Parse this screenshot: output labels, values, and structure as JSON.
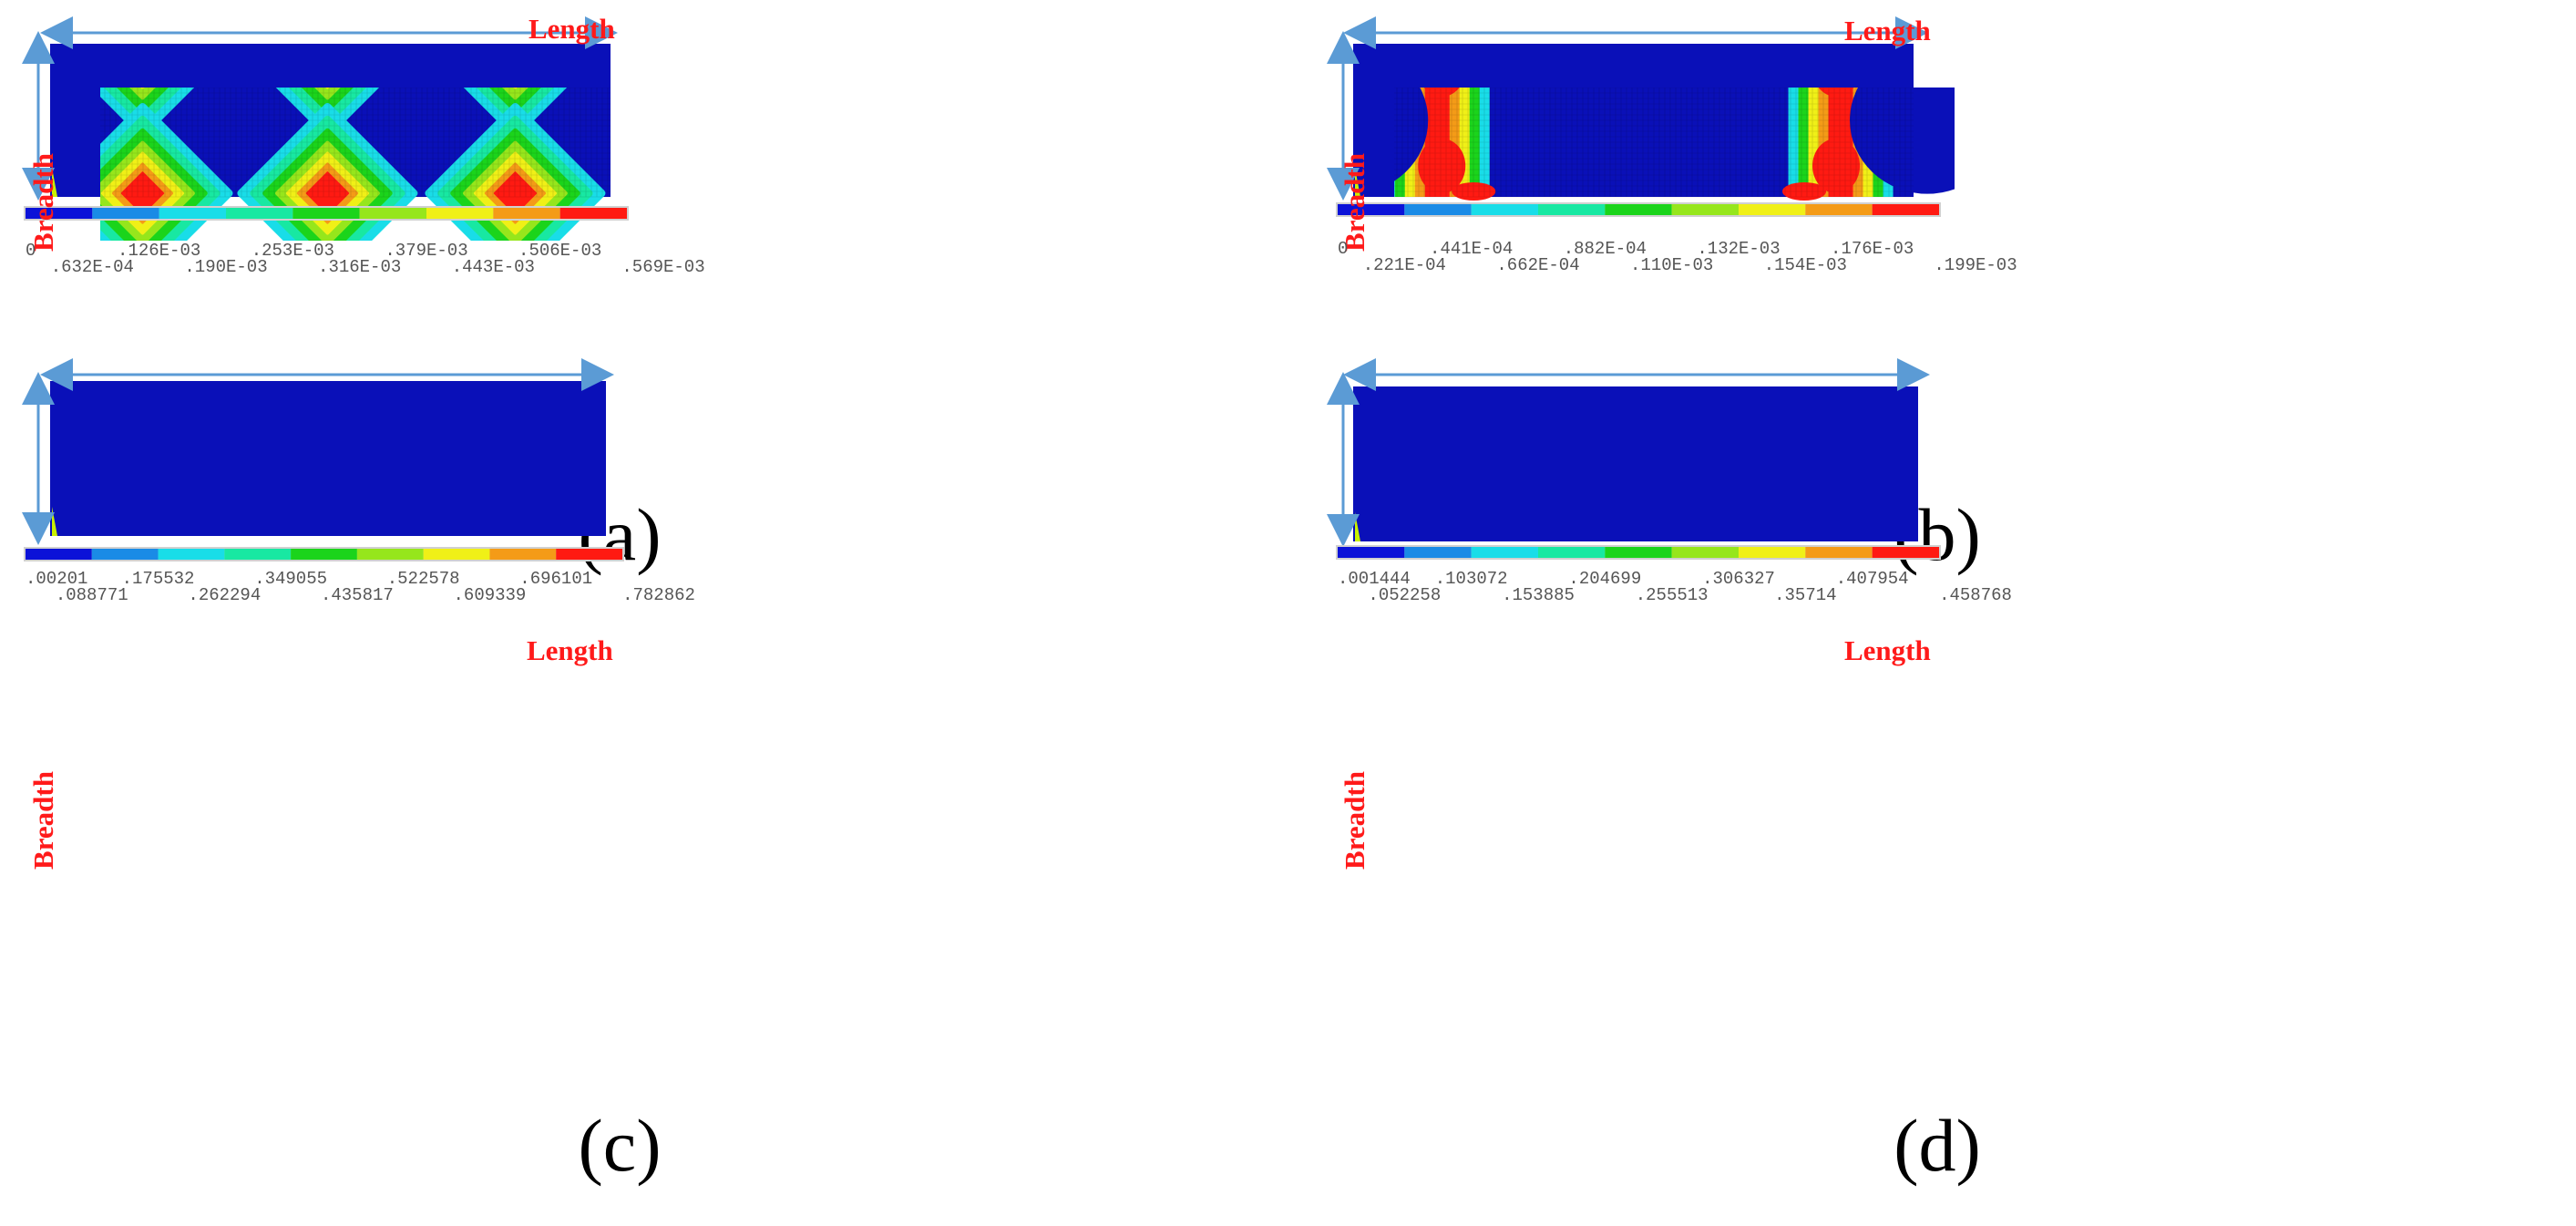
{
  "axis_labels": {
    "length": "Length",
    "breadth": "Breadth"
  },
  "legend_colors": [
    "#0b12d8",
    "#1a8be6",
    "#19dde8",
    "#18e8a2",
    "#1bd41b",
    "#96e61c",
    "#f0f017",
    "#f49b17",
    "#ff1a12"
  ],
  "field_color": "#0a10b8",
  "panels": [
    {
      "caption": "(a)",
      "pattern": "diamonds",
      "ticks": [
        "0",
        ".632E-04",
        ".126E-03",
        ".190E-03",
        ".253E-03",
        ".316E-03",
        ".379E-03",
        ".443E-03",
        ".506E-03",
        ".569E-03"
      ]
    },
    {
      "caption": "(b)",
      "pattern": "edge-arches",
      "ticks": [
        "0",
        ".221E-04",
        ".441E-04",
        ".662E-04",
        ".882E-04",
        ".110E-03",
        ".132E-03",
        ".154E-03",
        ".176E-03",
        ".199E-03"
      ]
    },
    {
      "caption": "(c)",
      "pattern": "center-column",
      "ticks": [
        ".00201",
        ".088771",
        ".175532",
        ".262294",
        ".349055",
        ".435817",
        ".522578",
        ".609339",
        ".696101",
        ".782862"
      ]
    },
    {
      "caption": "(d)",
      "pattern": "edge-columns",
      "ticks": [
        ".001444",
        ".052258",
        ".103072",
        ".153885",
        ".204699",
        ".255513",
        ".306327",
        ".35714",
        ".407954",
        ".458768"
      ]
    }
  ]
}
